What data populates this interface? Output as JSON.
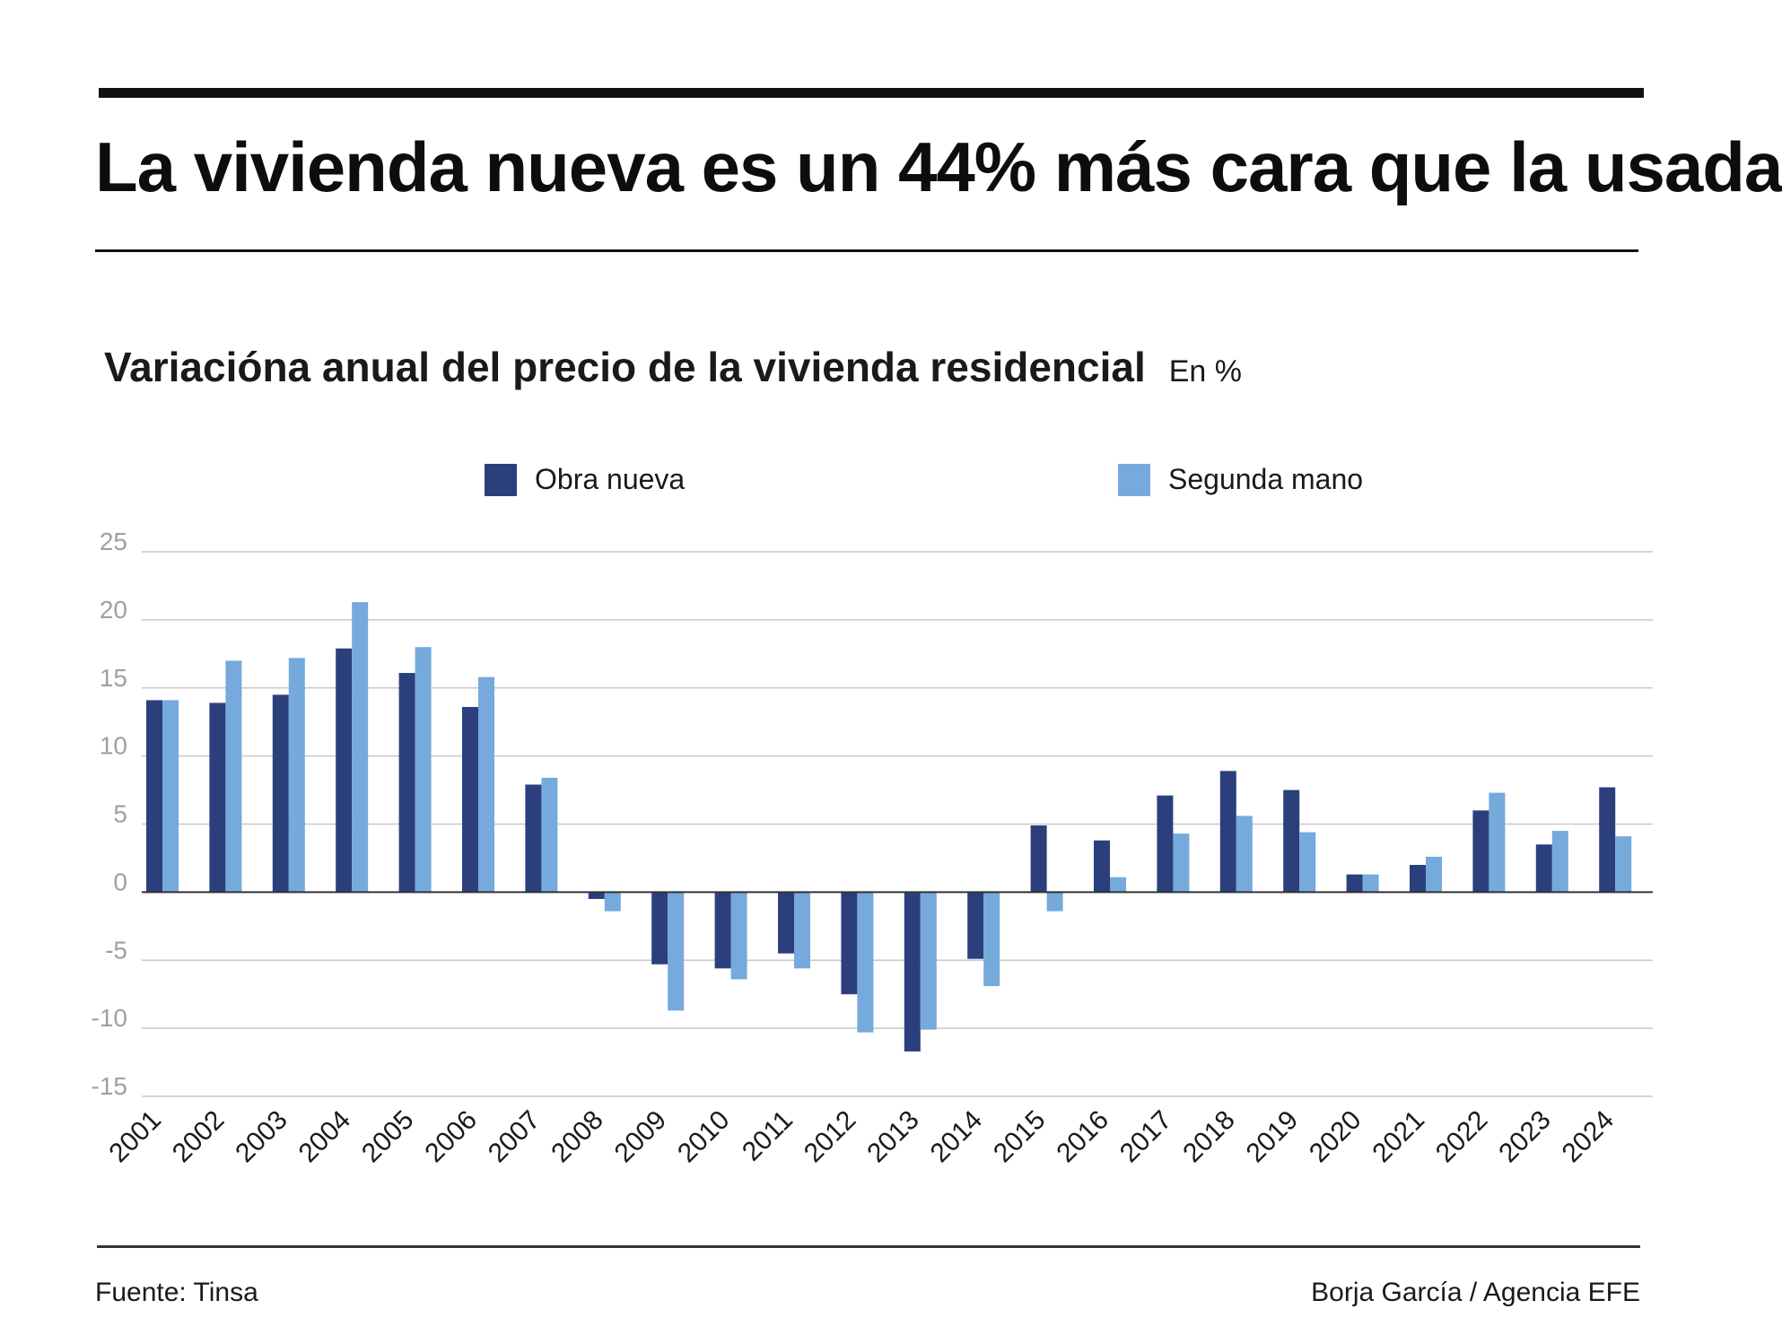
{
  "header": {
    "headline": "La vivienda nueva es un 44% más cara que la usada"
  },
  "footer": {
    "source": "Fuente: Tinsa",
    "credit": "Borja García / Agencia EFE"
  },
  "colors": {
    "obra_nueva": "#2b3f7d",
    "segunda_mano": "#76a9dc",
    "gridline": "#c8c8c8",
    "axis_tick_text": "#a0a0a0",
    "zero_line": "#333333"
  },
  "chart_data": {
    "type": "bar",
    "title": "Variacióna anual del precio de la vivienda residencial",
    "units": "En %",
    "xlabel": "",
    "ylabel": "",
    "ylim": [
      -15,
      25
    ],
    "yticks": [
      25,
      20,
      15,
      10,
      5,
      0,
      -5,
      -10,
      -15
    ],
    "grid": true,
    "legend_position": "top",
    "categories": [
      "2001",
      "2002",
      "2003",
      "2004",
      "2005",
      "2006",
      "2007",
      "2008",
      "2009",
      "2010",
      "2011",
      "2012",
      "2013",
      "2014",
      "2015",
      "2016",
      "2017",
      "2018",
      "2019",
      "2020",
      "2021",
      "2022",
      "2023",
      "2024"
    ],
    "series": [
      {
        "name": "Obra nueva",
        "values": [
          14.1,
          13.9,
          14.5,
          17.9,
          16.1,
          13.6,
          7.9,
          -0.5,
          -5.3,
          -5.6,
          -4.5,
          -7.5,
          -11.7,
          -4.9,
          4.9,
          3.8,
          7.1,
          8.9,
          7.5,
          1.3,
          2.0,
          6.0,
          3.5,
          7.7
        ]
      },
      {
        "name": "Segunda mano",
        "values": [
          14.1,
          17.0,
          17.2,
          21.3,
          18.0,
          15.8,
          8.4,
          -1.4,
          -8.7,
          -6.4,
          -5.6,
          -10.3,
          -10.1,
          -6.9,
          -1.4,
          1.1,
          4.3,
          5.6,
          4.4,
          1.3,
          2.6,
          7.3,
          4.5,
          4.1
        ]
      }
    ]
  }
}
